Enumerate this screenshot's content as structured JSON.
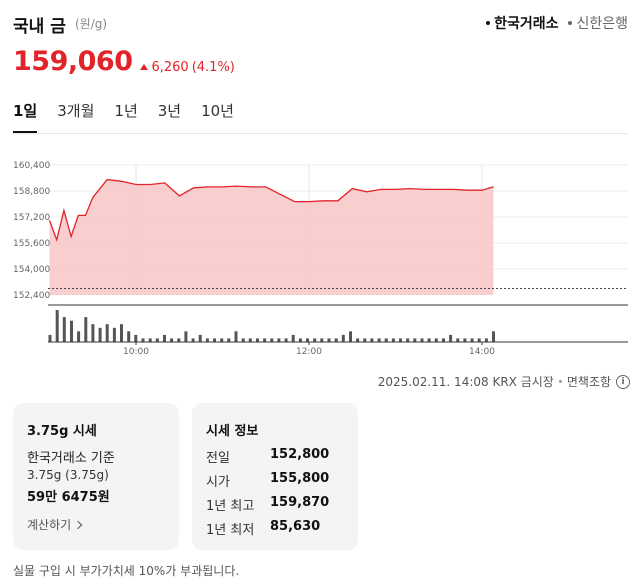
{
  "header": {
    "title": "국내 금",
    "unit": "(원/g)",
    "sources": [
      {
        "label": "한국거래소",
        "active": true
      },
      {
        "label": "신한은행",
        "active": false
      }
    ]
  },
  "price": {
    "current": "159,060",
    "change": "6,260",
    "change_pct": "(4.1%)",
    "direction": "up",
    "color": "#e3232a"
  },
  "period_tabs": [
    "1일",
    "3개월",
    "1년",
    "3년",
    "10년"
  ],
  "active_period": "1일",
  "chart_data": {
    "type": "area",
    "y_ticks": [
      "160,400",
      "158,800",
      "157,200",
      "155,600",
      "154,000",
      "152,400"
    ],
    "ylim": [
      152400,
      160400
    ],
    "x_ticks": [
      "10:00",
      "12:00",
      "14:00"
    ],
    "x_range": [
      "09:00",
      "14:08"
    ],
    "previous_close": 152800,
    "series": [
      {
        "x": [
          "09:00",
          "09:05",
          "09:10",
          "09:15",
          "09:20",
          "09:25",
          "09:30",
          "09:40",
          "09:50",
          "10:00",
          "10:10",
          "10:20",
          "10:30",
          "10:40",
          "10:50",
          "11:00",
          "11:10",
          "11:20",
          "11:30",
          "11:40",
          "11:50",
          "12:00",
          "12:10",
          "12:20",
          "12:30",
          "12:40",
          "12:50",
          "13:00",
          "13:10",
          "13:20",
          "13:30",
          "13:40",
          "13:50",
          "14:00",
          "14:08"
        ],
        "y": [
          157000,
          155800,
          157600,
          156000,
          157300,
          157300,
          158400,
          159500,
          159400,
          159200,
          159200,
          159300,
          158500,
          159000,
          159050,
          159050,
          159100,
          159050,
          159050,
          158600,
          158150,
          158150,
          158200,
          158200,
          158950,
          158750,
          158900,
          158900,
          158950,
          158900,
          158900,
          158900,
          158850,
          158850,
          159060
        ]
      }
    ],
    "volume": [
      2,
      9,
      7,
      6,
      3,
      7,
      5,
      4,
      5,
      4,
      5,
      3,
      2,
      1,
      1,
      1,
      2,
      1,
      1,
      3,
      1,
      2,
      1,
      1,
      1,
      1,
      3,
      1,
      1,
      1,
      1,
      1,
      1,
      1,
      2,
      1,
      1,
      1,
      1,
      1,
      1,
      2,
      3,
      1,
      1,
      1,
      1,
      1,
      1,
      1,
      1,
      1,
      1,
      1,
      1,
      1,
      2,
      1,
      1,
      1,
      1,
      1,
      3
    ],
    "line_color": "#e3232a",
    "fill_color": "#f7c5c5"
  },
  "meta": {
    "timestamp": "2025.02.11. 14:08 KRX 금시장",
    "disclaimer": "면책조항"
  },
  "card1": {
    "title": "3.75g 시세",
    "line1": "한국거래소 기준",
    "line2": "3.75g (3.75g)",
    "line3": "59만 6475원",
    "link": "계산하기"
  },
  "card2": {
    "title": "시세 정보",
    "rows": [
      {
        "label": "전일",
        "value": "152,800"
      },
      {
        "label": "시가",
        "value": "155,800"
      },
      {
        "label": "1년 최고",
        "value": "159,870"
      },
      {
        "label": "1년 최저",
        "value": "85,630"
      }
    ]
  },
  "footnote": "실물 구입 시 부가가치세 10%가 부과됩니다."
}
